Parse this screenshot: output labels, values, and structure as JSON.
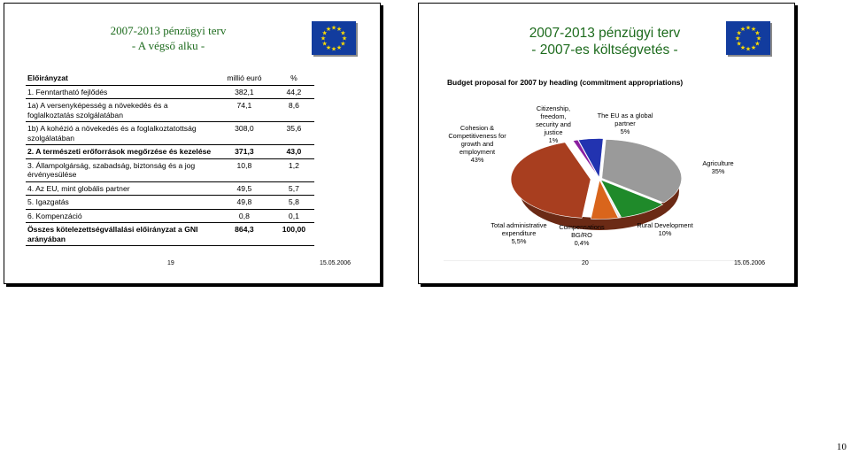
{
  "slide1": {
    "title_line1": "2007-2013 pénzügyi terv",
    "title_line2": "- A végső alku -",
    "table": {
      "header": {
        "label": "Előirányzat",
        "col1": "millió euró",
        "col2": "%"
      },
      "rows": [
        {
          "label": "1. Fenntartható fejlődés",
          "v1": "382,1",
          "v2": "44,2",
          "bold": false
        },
        {
          "label": "1a) A versenyképesség a növekedés és a foglalkoztatás szolgálatában",
          "v1": "74,1",
          "v2": "8,6",
          "bold": false
        },
        {
          "label": "1b) A kohézió a növekedés és a foglalkoztatottság szolgálatában",
          "v1": "308,0",
          "v2": "35,6",
          "bold": false
        },
        {
          "label": "2. A természeti erőforrások megőrzése és kezelése",
          "v1": "371,3",
          "v2": "43,0",
          "bold": true
        },
        {
          "label": "3. Állampolgárság, szabadság, biztonság és a jog érvényesülése",
          "v1": "10,8",
          "v2": "1,2",
          "bold": false
        },
        {
          "label": "4. Az EU, mint globális partner",
          "v1": "49,5",
          "v2": "5,7",
          "bold": false
        },
        {
          "label": "5. Igazgatás",
          "v1": "49,8",
          "v2": "5,8",
          "bold": false
        },
        {
          "label": "6. Kompenzáció",
          "v1": "0,8",
          "v2": "0,1",
          "bold": false
        },
        {
          "label": "Összes kötelezettségvállalási előirányzat a GNI arányában",
          "v1": "864,3",
          "v2": "100,00",
          "bold": true
        }
      ]
    },
    "slide_number": "19",
    "date": "15.05.2006"
  },
  "slide2": {
    "title_line1": "2007-2013 pénzügyi terv",
    "title_line2": "- 2007-es költségvetés -",
    "slide_number": "20",
    "date": "15.05.2006"
  },
  "chart_data": {
    "type": "pie",
    "title": "Budget proposal for 2007 by heading (commitment appropriations)",
    "slices": [
      {
        "label": "Agriculture",
        "value": 35,
        "display": "35%",
        "color": "#9a9a9a"
      },
      {
        "label": "Rural Development",
        "value": 10,
        "display": "10%",
        "color": "#1f8a2a"
      },
      {
        "label": "Compensations BG/RO",
        "value": 0.4,
        "display": "0,4%",
        "color": "#e0e0e0"
      },
      {
        "label": "Total administrative expenditure",
        "value": 5.5,
        "display": "5,5%",
        "color": "#d9651c"
      },
      {
        "label": "Cohesion & Competitiveness for growth and employment",
        "value": 43,
        "display": "43%",
        "color": "#a83e1f"
      },
      {
        "label": "Citizenship, freedom, security and justice",
        "value": 1,
        "display": "1%",
        "color": "#8a1fa0"
      },
      {
        "label": "The EU as a global partner",
        "value": 5,
        "display": "5%",
        "color": "#2233b0"
      }
    ],
    "labels": {
      "agriculture": "Agriculture",
      "rural": "Rural Development",
      "comp": "Compensations BG/RO",
      "admin": "Total administrative expenditure",
      "cohesion": "Cohesion & Competitiveness for growth and employment",
      "citizen": "Citizenship, freedom, security and justice",
      "global": "The EU as a global partner"
    }
  },
  "page_number": "10"
}
